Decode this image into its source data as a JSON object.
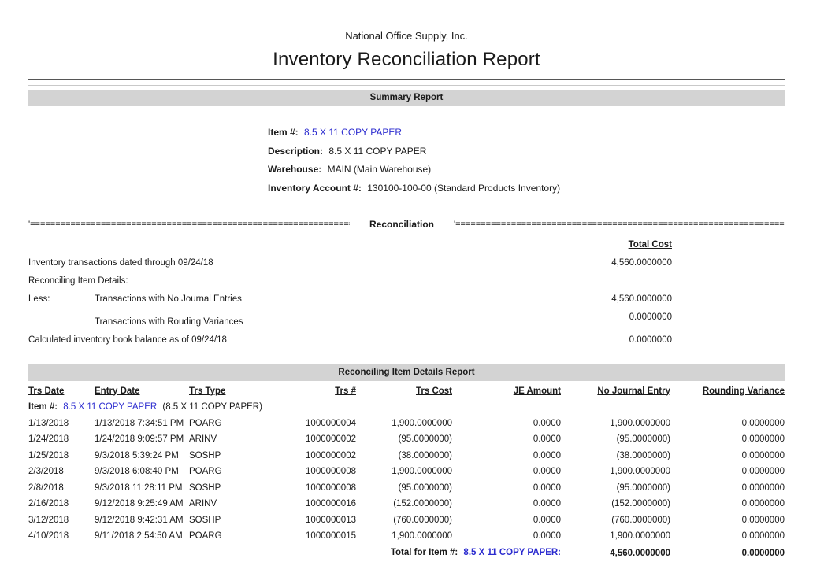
{
  "report": {
    "company": "National Office Supply, Inc.",
    "title": "Inventory Reconciliation Report"
  },
  "summary": {
    "bar_title": "Summary Report",
    "item_label": "Item #:",
    "item_value": "8.5 X 11 COPY PAPER",
    "description_label": "Description:",
    "description_value": "8.5 X 11 COPY PAPER",
    "warehouse_label": "Warehouse:",
    "warehouse_value": "MAIN (Main Warehouse)",
    "account_label": "Inventory Account #:",
    "account_value": "130100-100-00 (Standard Products Inventory)"
  },
  "reconciliation": {
    "divider_left": "'========================================================================================",
    "divider_title": "Reconciliation",
    "divider_right": "'========================================================================================",
    "total_cost_header": "Total Cost",
    "row1_label": "Inventory transactions dated through 09/24/18",
    "row1_value": "4,560.0000000",
    "row2_label": "Reconciling Item Details:",
    "row3_prefix": "Less:",
    "row3_label": "Transactions with No Journal Entries",
    "row3_value": "4,560.0000000",
    "row4_label": "Transactions with Rouding Variances",
    "row4_value": "0.0000000",
    "row5_label": "Calculated inventory book balance as of 09/24/18",
    "row5_value": "0.0000000"
  },
  "details": {
    "bar_title": "Reconciling Item Details Report",
    "columns": [
      "Trs Date",
      "Entry Date",
      "Trs Type",
      "Trs #",
      "Trs Cost",
      "JE Amount",
      "No Journal Entry",
      "Rounding Variance"
    ],
    "item_label": "Item #:",
    "item_link": "8.5 X 11 COPY PAPER",
    "item_suffix": "(8.5 X 11 COPY PAPER)",
    "rows": [
      [
        "1/13/2018",
        "1/13/2018 7:34:51 PM",
        "POARG",
        "1000000004",
        "1,900.0000000",
        "0.0000",
        "1,900.0000000",
        "0.0000000"
      ],
      [
        "1/24/2018",
        "1/24/2018 9:09:57 PM",
        "ARINV",
        "1000000002",
        "(95.0000000)",
        "0.0000",
        "(95.0000000)",
        "0.0000000"
      ],
      [
        "1/25/2018",
        "9/3/2018 5:39:24 PM",
        "SOSHP",
        "1000000002",
        "(38.0000000)",
        "0.0000",
        "(38.0000000)",
        "0.0000000"
      ],
      [
        "2/3/2018",
        "9/3/2018 6:08:40 PM",
        "POARG",
        "1000000008",
        "1,900.0000000",
        "0.0000",
        "1,900.0000000",
        "0.0000000"
      ],
      [
        "2/8/2018",
        "9/3/2018 11:28:11 PM",
        "SOSHP",
        "1000000008",
        "(95.0000000)",
        "0.0000",
        "(95.0000000)",
        "0.0000000"
      ],
      [
        "2/16/2018",
        "9/12/2018 9:25:49 AM",
        "ARINV",
        "1000000016",
        "(152.0000000)",
        "0.0000",
        "(152.0000000)",
        "0.0000000"
      ],
      [
        "3/12/2018",
        "9/12/2018 9:42:31 AM",
        "SOSHP",
        "1000000013",
        "(760.0000000)",
        "0.0000",
        "(760.0000000)",
        "0.0000000"
      ],
      [
        "4/10/2018",
        "9/11/2018 2:54:50 AM",
        "POARG",
        "1000000015",
        "1,900.0000000",
        "0.0000",
        "1,900.0000000",
        "0.0000000"
      ]
    ],
    "total": {
      "label": "Total for Item #:",
      "link": "8.5 X 11 COPY PAPER:",
      "no_journal_entry": "4,560.0000000",
      "rounding_variance": "0.0000000"
    }
  },
  "colors": {
    "link_blue": "#2b2bcf",
    "section_bar_gray": "#d3d3d3",
    "rule_dark": "#565656"
  }
}
